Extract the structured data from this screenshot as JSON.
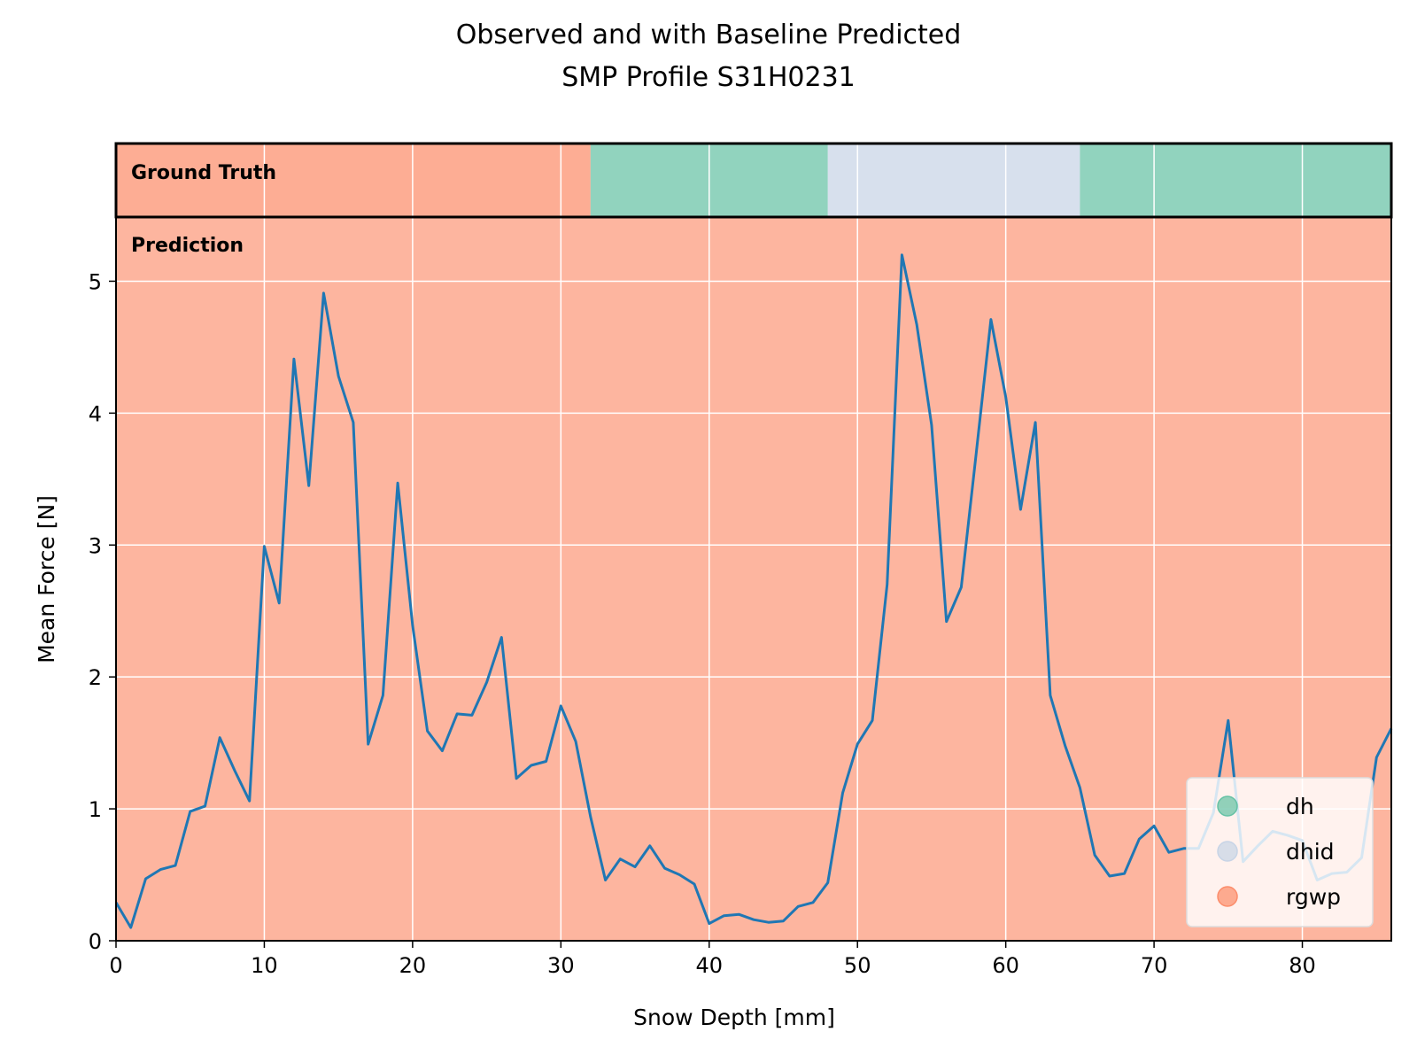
{
  "chart_data": {
    "type": "line",
    "title": "Observed and with Baseline Predicted",
    "subtitle": "SMP Profile S31H0231",
    "xlabel": "Snow Depth [mm]",
    "ylabel": "Mean Force [N]",
    "xlim": [
      0,
      86
    ],
    "ylim": [
      0,
      5.5
    ],
    "xticks": [
      0,
      10,
      20,
      30,
      40,
      50,
      60,
      70,
      80
    ],
    "yticks": [
      0,
      1,
      2,
      3,
      4,
      5
    ],
    "grid": true,
    "legend_position": "lower-right",
    "band_labels": {
      "ground_truth": "Ground Truth",
      "prediction": "Prediction"
    },
    "classes": [
      {
        "name": "dh",
        "color": "#66c2a5"
      },
      {
        "name": "dhid",
        "color": "#c7d4e6"
      },
      {
        "name": "rgwp",
        "color": "#fc8d6b"
      }
    ],
    "ground_truth": [
      {
        "class": "rgwp",
        "start": 0,
        "end": 32
      },
      {
        "class": "dh",
        "start": 32,
        "end": 48
      },
      {
        "class": "dhid",
        "start": 48,
        "end": 65
      },
      {
        "class": "dh",
        "start": 65,
        "end": 86
      }
    ],
    "prediction": [
      {
        "class": "rgwp",
        "start": 0,
        "end": 86
      }
    ],
    "series": [
      {
        "color": "#1f77b4",
        "x": [
          0,
          1,
          2,
          3,
          4,
          5,
          6,
          7,
          8,
          9,
          10,
          11,
          12,
          13,
          14,
          15,
          16,
          17,
          18,
          19,
          20,
          21,
          22,
          23,
          24,
          25,
          26,
          27,
          28,
          29,
          30,
          31,
          32,
          33,
          34,
          35,
          36,
          37,
          38,
          39,
          40,
          41,
          42,
          43,
          44,
          45,
          46,
          47,
          48,
          49,
          50,
          51,
          52,
          53,
          54,
          55,
          56,
          57,
          58,
          59,
          60,
          61,
          62,
          63,
          64,
          65,
          66,
          67,
          68,
          69,
          70,
          71,
          72,
          73,
          74,
          75,
          76,
          77,
          78,
          79,
          80,
          81,
          82,
          83,
          84,
          85,
          86
        ],
        "y": [
          0.29,
          0.1,
          0.47,
          0.54,
          0.57,
          0.98,
          1.02,
          1.54,
          1.29,
          1.06,
          2.99,
          2.56,
          4.41,
          3.45,
          4.91,
          4.28,
          3.93,
          1.49,
          1.86,
          3.47,
          2.39,
          1.59,
          1.44,
          1.72,
          1.71,
          1.96,
          2.3,
          1.23,
          1.33,
          1.36,
          1.78,
          1.51,
          0.94,
          0.46,
          0.62,
          0.56,
          0.72,
          0.55,
          0.5,
          0.43,
          0.13,
          0.19,
          0.2,
          0.16,
          0.14,
          0.15,
          0.26,
          0.29,
          0.44,
          1.12,
          1.49,
          1.67,
          2.7,
          5.2,
          4.67,
          3.91,
          2.42,
          2.68,
          3.69,
          4.71,
          4.12,
          3.27,
          3.93,
          1.86,
          1.48,
          1.16,
          0.65,
          0.49,
          0.51,
          0.77,
          0.87,
          0.67,
          0.7,
          0.7,
          0.97,
          1.67,
          0.6,
          0.72,
          0.83,
          0.8,
          0.76,
          0.46,
          0.51,
          0.52,
          0.63,
          1.39,
          1.61
        ]
      }
    ]
  }
}
